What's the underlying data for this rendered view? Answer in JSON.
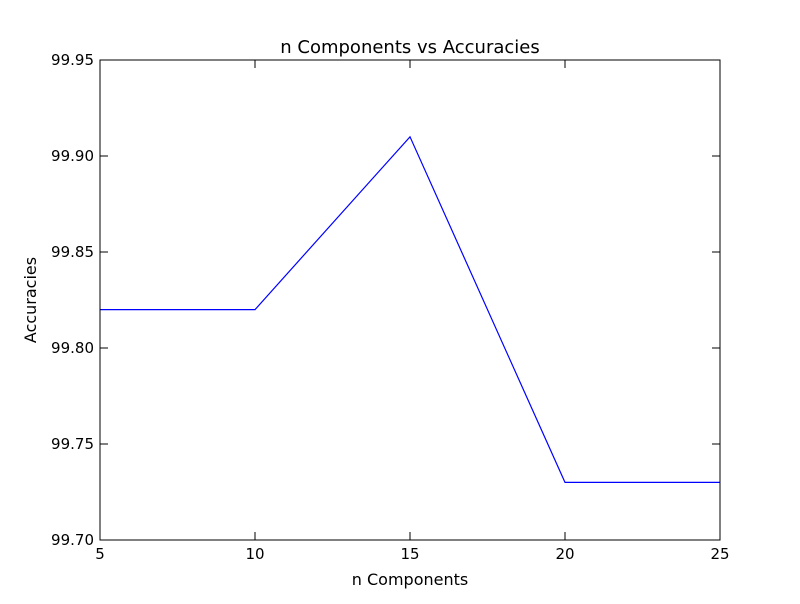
{
  "chart_data": {
    "type": "line",
    "title": "n Components vs Accuracies",
    "xlabel": "n Components",
    "ylabel": "Accuracies",
    "x": [
      5,
      10,
      15,
      20,
      25
    ],
    "series": [
      {
        "values": [
          99.82,
          99.82,
          99.91,
          99.73,
          99.73
        ],
        "color": "#0000ff"
      }
    ],
    "xlim": [
      5,
      25
    ],
    "ylim": [
      99.7,
      99.95
    ],
    "xticks": [
      5,
      10,
      15,
      20,
      25
    ],
    "xtick_labels": [
      "5",
      "10",
      "15",
      "20",
      "25"
    ],
    "yticks": [
      99.7,
      99.75,
      99.8,
      99.85,
      99.9,
      99.95
    ],
    "ytick_labels": [
      "99.70",
      "99.75",
      "99.80",
      "99.85",
      "99.90",
      "99.95"
    ],
    "grid": false,
    "legend": "none"
  }
}
